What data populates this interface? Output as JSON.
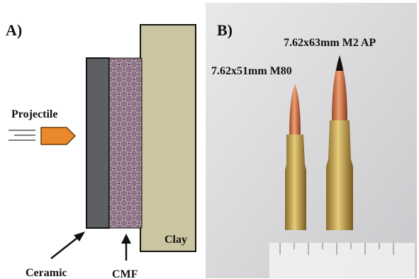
{
  "panels": [
    {
      "label": "A)",
      "projectile": "Projectile",
      "layers": [
        "Ceramic",
        "CMF",
        "Clay"
      ]
    },
    {
      "label": "B)",
      "bullets": [
        "7.62x51mm M80",
        "7.62x63mm M2 AP"
      ]
    }
  ]
}
